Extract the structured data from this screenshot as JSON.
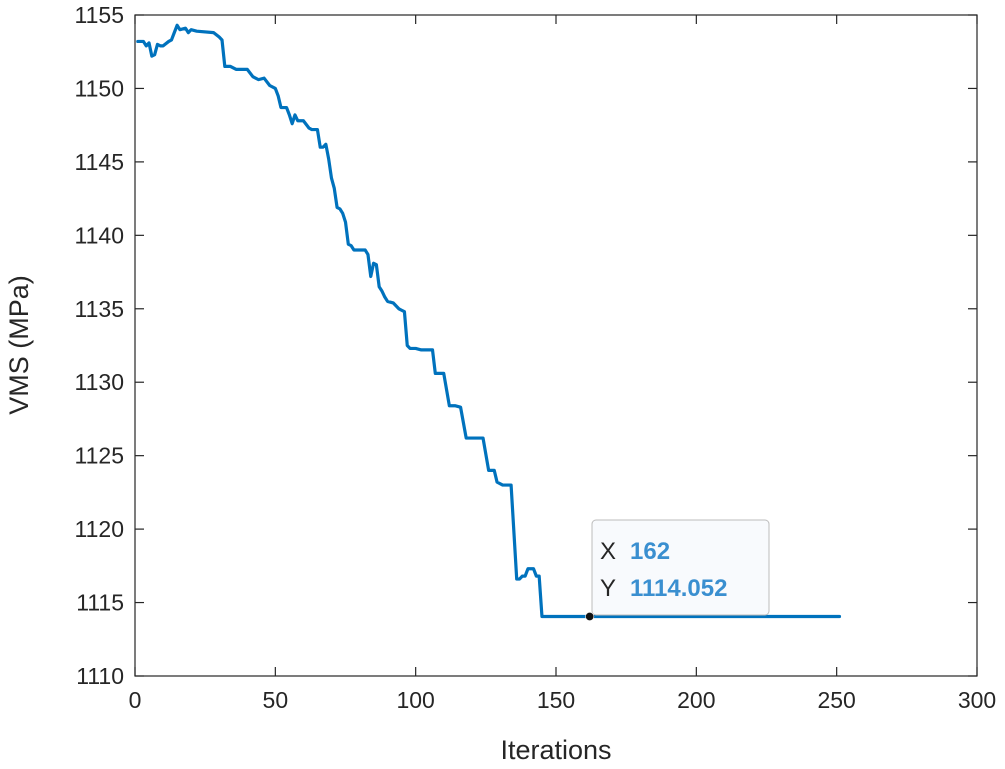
{
  "chart_data": {
    "type": "line",
    "title": "",
    "xlabel": "Iterations",
    "ylabel": "VMS (MPa)",
    "xlim": [
      0,
      300
    ],
    "ylim": [
      1110,
      1155
    ],
    "xticks": [
      0,
      50,
      100,
      150,
      200,
      250,
      300
    ],
    "yticks": [
      1110,
      1115,
      1120,
      1125,
      1130,
      1135,
      1140,
      1145,
      1150,
      1155
    ],
    "grid": false,
    "box": true,
    "series": [
      {
        "color": "#0072BD",
        "x": [
          1,
          3,
          4,
          5,
          6,
          7,
          8,
          9,
          10,
          12,
          13,
          14,
          15,
          16,
          18,
          19,
          20,
          22,
          28,
          30,
          31,
          32,
          34,
          36,
          40,
          42,
          44,
          46,
          48,
          50,
          51,
          52,
          54,
          55,
          56,
          57,
          58,
          60,
          62,
          63,
          65,
          66,
          67,
          68,
          69,
          70,
          71,
          72,
          73,
          74,
          75,
          76,
          77,
          78,
          80,
          82,
          83,
          84,
          85,
          86,
          87,
          88,
          89,
          90,
          92,
          94,
          95,
          96,
          97,
          98,
          99,
          100,
          102,
          104,
          106,
          107,
          108,
          110,
          112,
          113,
          114,
          116,
          118,
          119,
          120,
          122,
          124,
          126,
          128,
          129,
          131,
          132,
          134,
          136,
          137,
          138,
          139,
          140,
          142,
          143,
          144,
          145,
          146,
          147,
          148,
          150,
          162,
          251
        ],
        "y": [
          1153.2,
          1153.2,
          1152.9,
          1153.1,
          1152.2,
          1152.3,
          1153.0,
          1152.9,
          1152.9,
          1153.2,
          1153.3,
          1153.8,
          1154.3,
          1154.0,
          1154.1,
          1153.8,
          1154.0,
          1153.9,
          1153.8,
          1153.5,
          1153.3,
          1151.5,
          1151.5,
          1151.3,
          1151.3,
          1150.8,
          1150.6,
          1150.7,
          1150.2,
          1150.0,
          1149.5,
          1148.7,
          1148.7,
          1148.2,
          1147.6,
          1148.2,
          1147.8,
          1147.8,
          1147.3,
          1147.2,
          1147.2,
          1146.0,
          1146.0,
          1146.2,
          1145.2,
          1143.9,
          1143.2,
          1141.9,
          1141.8,
          1141.5,
          1140.9,
          1139.4,
          1139.3,
          1139.0,
          1139.0,
          1139.0,
          1138.7,
          1137.2,
          1138.1,
          1138.0,
          1136.5,
          1136.2,
          1135.8,
          1135.5,
          1135.4,
          1135.0,
          1134.9,
          1134.8,
          1132.5,
          1132.3,
          1132.3,
          1132.3,
          1132.2,
          1132.2,
          1132.2,
          1130.6,
          1130.6,
          1130.6,
          1128.4,
          1128.4,
          1128.4,
          1128.3,
          1126.2,
          1126.2,
          1126.2,
          1126.2,
          1126.2,
          1124.0,
          1124.0,
          1123.2,
          1123.0,
          1123.0,
          1123.0,
          1116.6,
          1116.6,
          1116.8,
          1116.8,
          1117.3,
          1117.3,
          1116.8,
          1116.8,
          1114.05,
          1114.05,
          1114.05,
          1114.05,
          1114.05,
          1114.05,
          1114.05
        ]
      }
    ],
    "datatip": {
      "x_key": "X",
      "x_value": "162",
      "y_key": "Y",
      "y_value": "1114.052",
      "x": 162,
      "y": 1114.052
    }
  }
}
